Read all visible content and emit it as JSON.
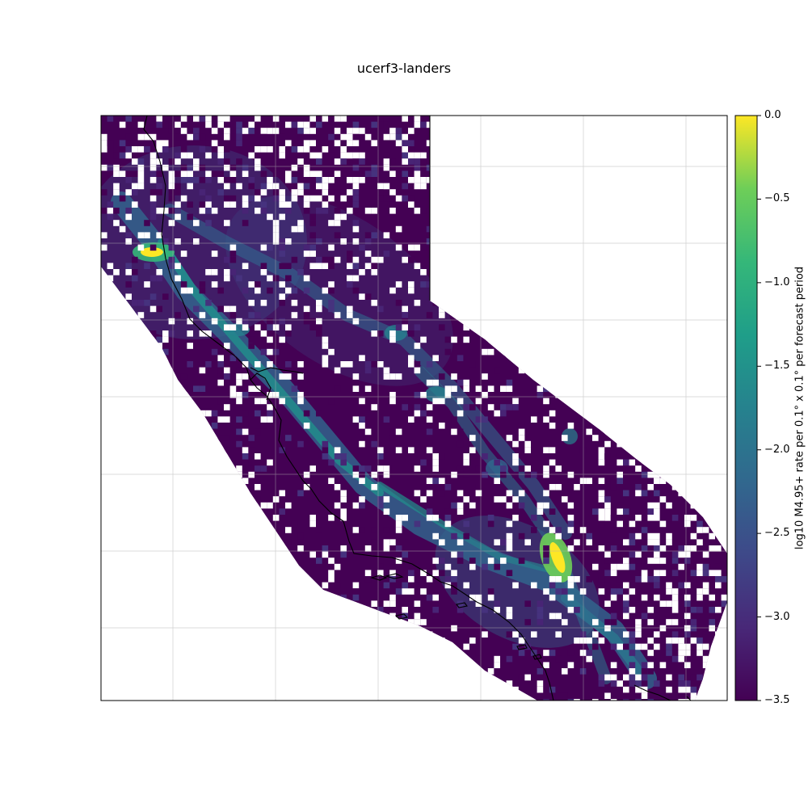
{
  "title": "ucerf3-landers",
  "colorbar": {
    "label": "log10 M4.95+ rate per 0.1° x 0.1° per forecast period",
    "min": -3.5,
    "max": 0.0,
    "ticks": [
      "0.0",
      "−0.5",
      "−1.0",
      "−1.5",
      "−2.0",
      "−2.5",
      "−3.0",
      "−3.5"
    ],
    "tick_values": [
      0.0,
      -0.5,
      -1.0,
      -1.5,
      -2.0,
      -2.5,
      -3.0,
      -3.5
    ],
    "colormap": "viridis"
  },
  "map": {
    "region": "California",
    "gridlines": true,
    "coastlines": true,
    "hotspots": [
      {
        "name": "northern-hotspot",
        "value": -0.1
      },
      {
        "name": "landers-hotspot",
        "value": 0.0
      }
    ],
    "cell_size_deg": 0.1
  },
  "colors": {
    "viridis_low": "#440154",
    "viridis_mid": "#21918c",
    "viridis_high": "#fde725",
    "coastline": "#000000",
    "grid": "#b0b0b0"
  }
}
